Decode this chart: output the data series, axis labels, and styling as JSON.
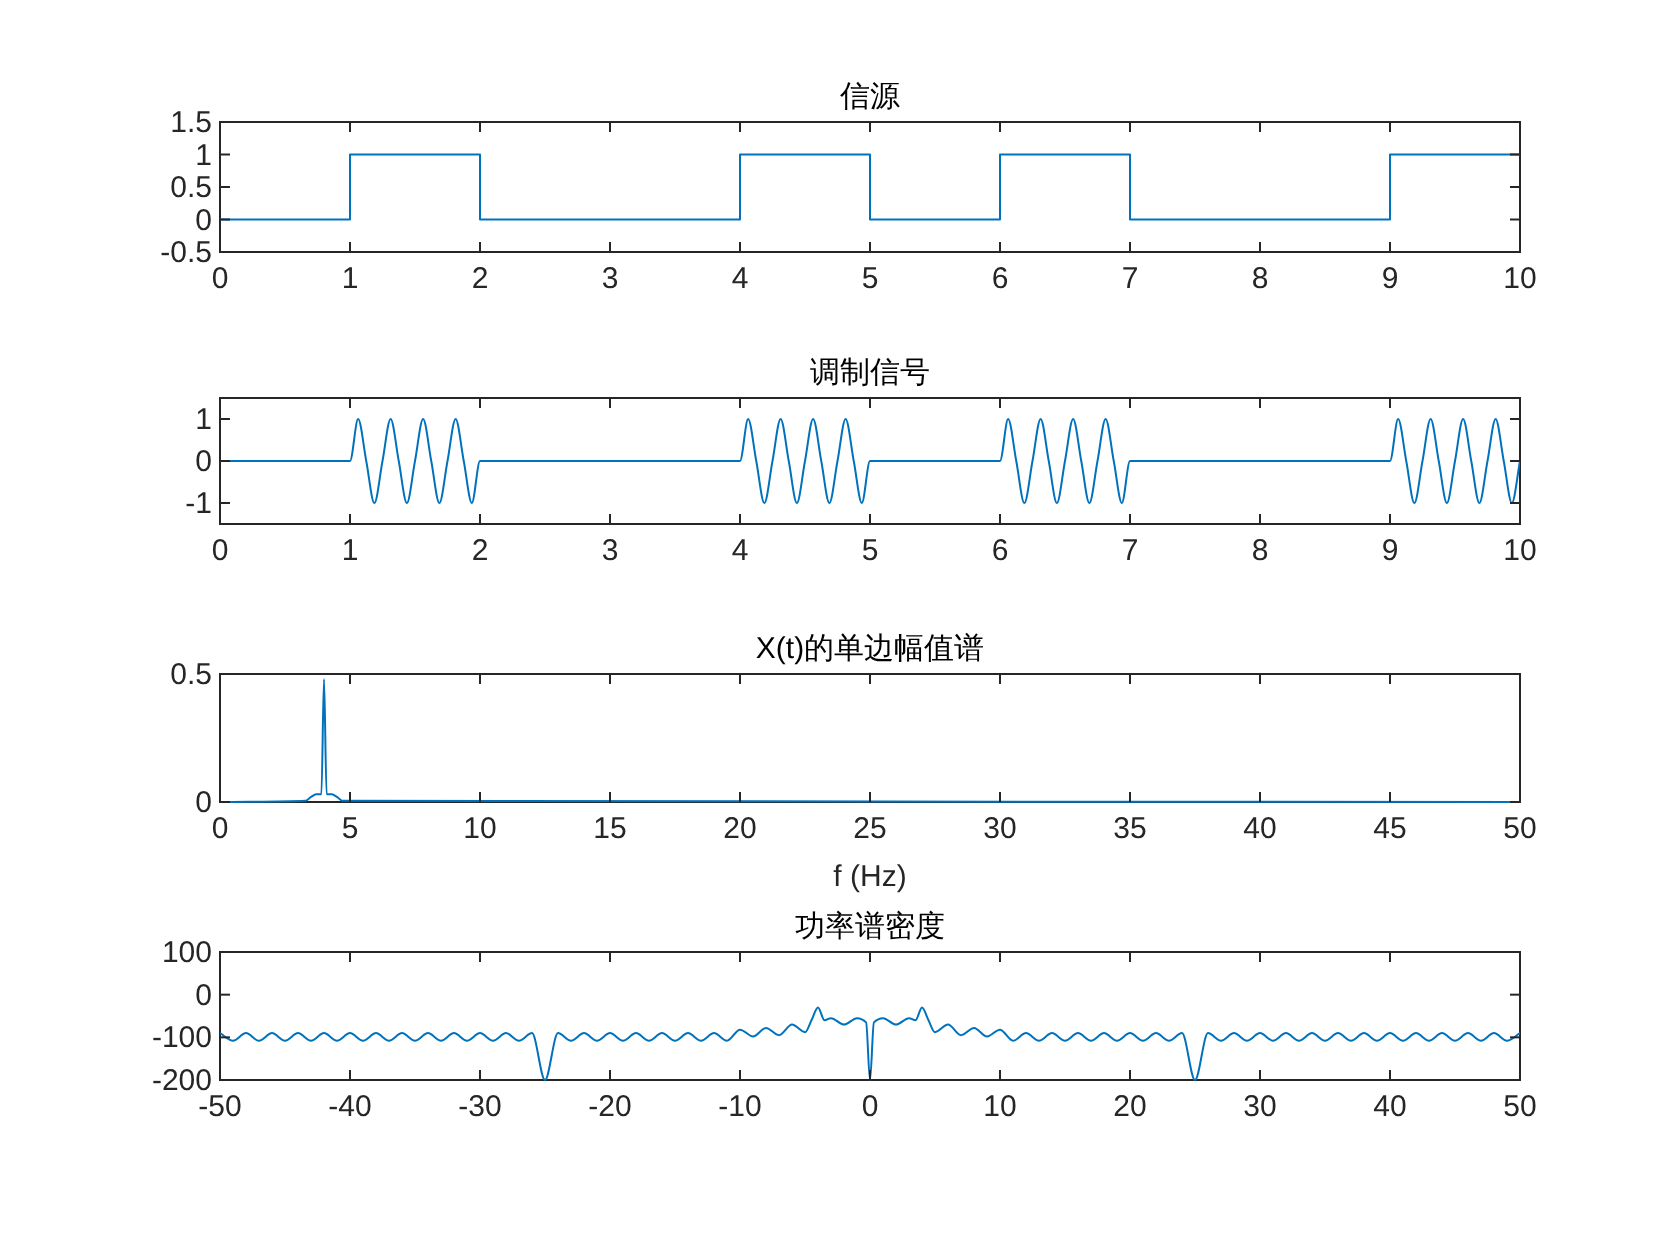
{
  "chart_data": [
    {
      "type": "line",
      "title": "信源",
      "xlim": [
        0,
        10
      ],
      "xticks": [
        0,
        1,
        2,
        3,
        4,
        5,
        6,
        7,
        8,
        9,
        10
      ],
      "ylim": [
        -0.5,
        1.5
      ],
      "yticks": [
        -0.5,
        0,
        0.5,
        1,
        1.5
      ],
      "series": [
        {
          "color": "#0072bd",
          "x": [
            0,
            1,
            1,
            2,
            2,
            4,
            4,
            5,
            5,
            6,
            6,
            7,
            7,
            9,
            9,
            10
          ],
          "values": [
            0,
            0,
            1,
            1,
            0,
            0,
            1,
            1,
            0,
            0,
            1,
            1,
            0,
            0,
            1,
            1
          ]
        }
      ]
    },
    {
      "type": "line",
      "title": "调制信号",
      "xlim": [
        0,
        10
      ],
      "xticks": [
        0,
        1,
        2,
        3,
        4,
        5,
        6,
        7,
        8,
        9,
        10
      ],
      "ylim": [
        -1.5,
        1.5
      ],
      "yticks": [
        -1,
        0,
        1
      ],
      "series": [
        {
          "color": "#0072bd",
          "x": [
            0,
            1,
            1.0625,
            1.125,
            1.1875,
            1.25,
            1.3125,
            1.375,
            1.4375,
            1.5,
            1.5625,
            1.625,
            1.6875,
            1.75,
            1.8125,
            1.875,
            1.9375,
            2,
            4,
            4.0625,
            4.125,
            4.1875,
            4.25,
            4.3125,
            4.375,
            4.4375,
            4.5,
            4.5625,
            4.625,
            4.6875,
            4.75,
            4.8125,
            4.875,
            4.9375,
            5,
            6,
            6.0625,
            6.125,
            6.1875,
            6.25,
            6.3125,
            6.375,
            6.4375,
            6.5,
            6.5625,
            6.625,
            6.6875,
            6.75,
            6.8125,
            6.875,
            6.9375,
            7,
            9,
            9.0625,
            9.125,
            9.1875,
            9.25,
            9.3125,
            9.375,
            9.4375,
            9.5,
            9.5625,
            9.625,
            9.6875,
            9.75,
            9.8125,
            9.875,
            9.9375,
            10
          ],
          "values": [
            0,
            0,
            1,
            0,
            -1,
            0,
            1,
            0,
            -1,
            0,
            1,
            0,
            -1,
            0,
            1,
            0,
            -1,
            0,
            0,
            1,
            0,
            -1,
            0,
            1,
            0,
            -1,
            0,
            1,
            0,
            -1,
            0,
            1,
            0,
            -1,
            0,
            0,
            1,
            0,
            -1,
            0,
            1,
            0,
            -1,
            0,
            1,
            0,
            -1,
            0,
            1,
            0,
            -1,
            0,
            0,
            1,
            0,
            -1,
            0,
            1,
            0,
            -1,
            0,
            1,
            0,
            -1,
            0,
            1,
            0,
            -1,
            0
          ]
        }
      ]
    },
    {
      "type": "line",
      "title": "X(t)的单边幅值谱",
      "xlabel": "f (Hz)",
      "xlim": [
        0,
        50
      ],
      "xticks": [
        0,
        5,
        10,
        15,
        20,
        25,
        30,
        35,
        40,
        45,
        50
      ],
      "ylim": [
        0,
        0.5
      ],
      "yticks": [
        0,
        0.5
      ],
      "series": [
        {
          "color": "#0072bd",
          "x": [
            0,
            3.3,
            3.5,
            3.7,
            3.9,
            4,
            4.1,
            4.3,
            4.5,
            4.7,
            50
          ],
          "values": [
            0,
            0.005,
            0.02,
            0.03,
            0.03,
            0.48,
            0.03,
            0.03,
            0.02,
            0.005,
            0
          ]
        }
      ]
    },
    {
      "type": "line",
      "title": "功率谱密度",
      "xlim": [
        -50,
        50
      ],
      "xticks": [
        -50,
        -40,
        -30,
        -20,
        -10,
        0,
        10,
        20,
        30,
        40,
        50
      ],
      "ylim": [
        -200,
        100
      ],
      "yticks": [
        -200,
        -100,
        0,
        100
      ],
      "series": [
        {
          "color": "#0072bd",
          "x": [
            -50,
            -49,
            -48,
            -47,
            -46,
            -45,
            -44,
            -43,
            -42,
            -41,
            -40,
            -39,
            -38,
            -37,
            -36,
            -35,
            -34,
            -33,
            -32,
            -31,
            -30,
            -29,
            -28,
            -27,
            -26,
            -25,
            -24,
            -23,
            -22,
            -21,
            -20,
            -19,
            -18,
            -17,
            -16,
            -15,
            -14,
            -13,
            -12,
            -11,
            -10,
            -9,
            -8,
            -7,
            -6,
            -5,
            -4.5,
            -4,
            -3.5,
            -3,
            -2,
            -1,
            -0.3,
            0,
            0.3,
            1,
            2,
            3,
            3.5,
            4,
            4.5,
            5,
            6,
            7,
            8,
            9,
            10,
            11,
            12,
            13,
            14,
            15,
            16,
            17,
            18,
            19,
            20,
            21,
            22,
            23,
            24,
            25,
            26,
            27,
            28,
            29,
            30,
            31,
            32,
            33,
            34,
            35,
            36,
            37,
            38,
            39,
            40,
            41,
            42,
            43,
            44,
            45,
            46,
            47,
            48,
            49,
            50
          ],
          "values": [
            -90,
            -108,
            -90,
            -108,
            -90,
            -108,
            -90,
            -108,
            -90,
            -108,
            -90,
            -108,
            -90,
            -108,
            -90,
            -108,
            -90,
            -108,
            -90,
            -108,
            -90,
            -108,
            -90,
            -108,
            -90,
            -200,
            -90,
            -108,
            -90,
            -108,
            -90,
            -108,
            -90,
            -108,
            -90,
            -108,
            -90,
            -108,
            -90,
            -108,
            -82,
            -98,
            -78,
            -95,
            -70,
            -88,
            -60,
            -30,
            -60,
            -55,
            -70,
            -55,
            -65,
            -200,
            -65,
            -55,
            -70,
            -55,
            -60,
            -30,
            -60,
            -88,
            -70,
            -95,
            -78,
            -98,
            -82,
            -108,
            -90,
            -108,
            -90,
            -108,
            -90,
            -108,
            -90,
            -108,
            -90,
            -108,
            -90,
            -108,
            -90,
            -200,
            -90,
            -108,
            -90,
            -108,
            -90,
            -108,
            -90,
            -108,
            -90,
            -108,
            -90,
            -108,
            -90,
            -108,
            -90,
            -108,
            -90,
            -108,
            -90,
            -108,
            -90,
            -108,
            -90,
            -108,
            -90
          ]
        }
      ]
    }
  ]
}
